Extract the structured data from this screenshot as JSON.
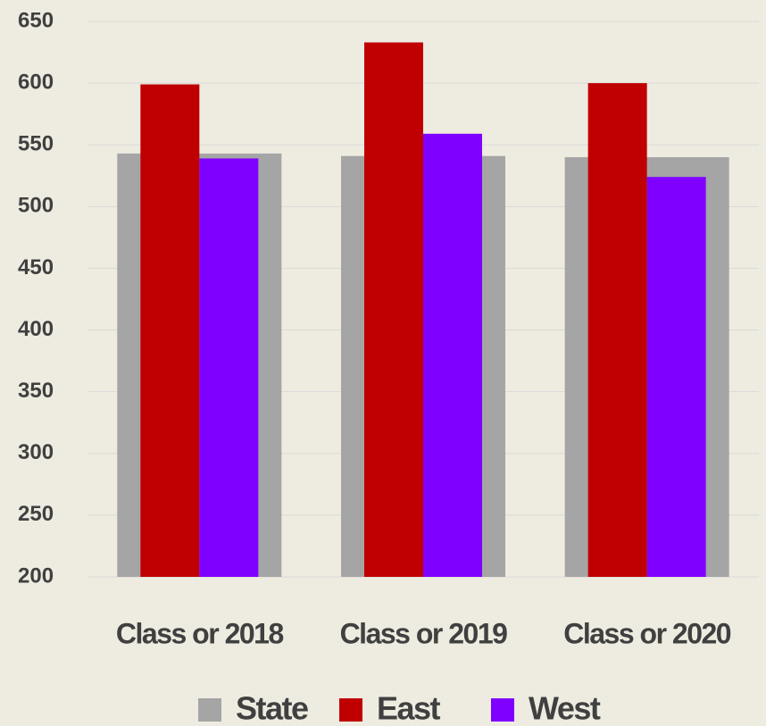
{
  "chart_data": {
    "type": "bar",
    "categories": [
      "Class or 2018",
      "Class or 2019",
      "Class or 2020"
    ],
    "series": [
      {
        "name": "State",
        "color": "#a5a5a5",
        "values": [
          543,
          541,
          540
        ]
      },
      {
        "name": "East",
        "color": "#c00000",
        "values": [
          599,
          633,
          600
        ]
      },
      {
        "name": "West",
        "color": "#7f00ff",
        "values": [
          539,
          559,
          524
        ]
      }
    ],
    "ylim": [
      200,
      650
    ],
    "yticks": [
      200,
      250,
      300,
      350,
      400,
      450,
      500,
      550,
      600,
      650
    ],
    "grid": true
  }
}
